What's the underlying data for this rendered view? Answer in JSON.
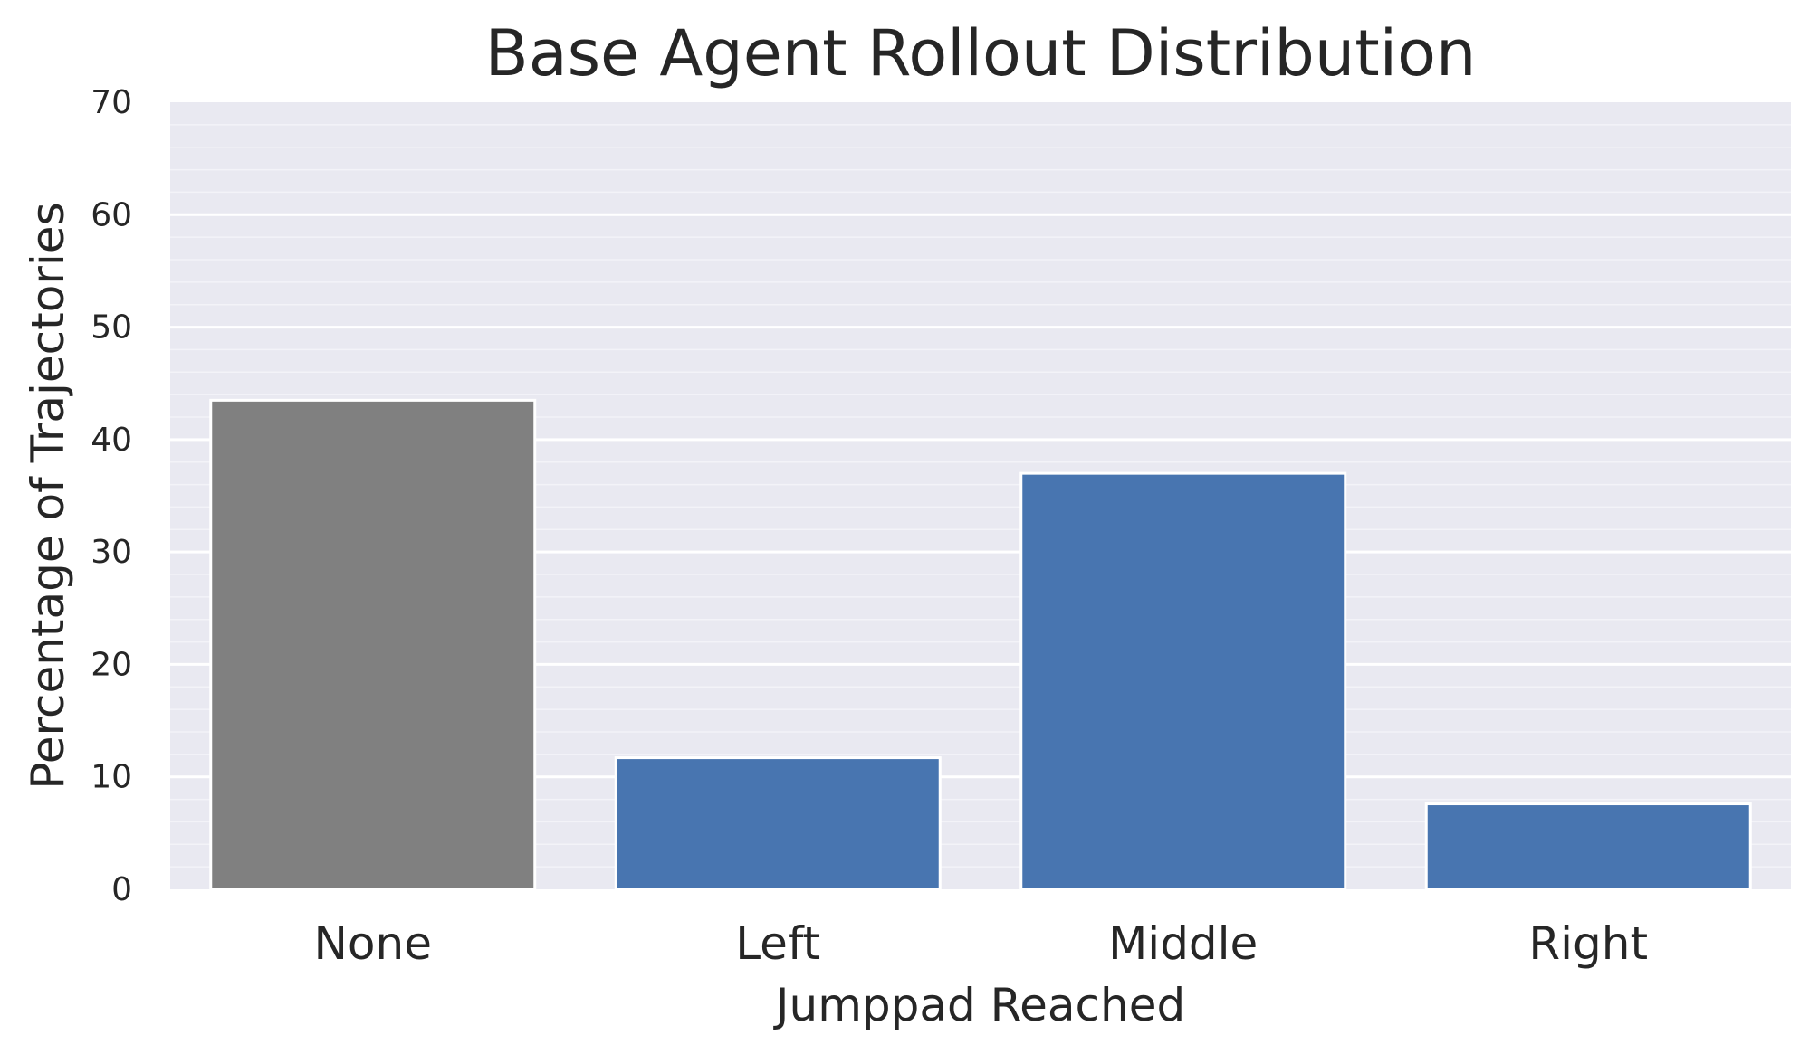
{
  "chart_data": {
    "type": "bar",
    "title": "Base Agent Rollout Distribution",
    "xlabel": "Jumppad Reached",
    "ylabel": "Percentage of Trajectories",
    "categories": [
      "None",
      "Left",
      "Middle",
      "Right"
    ],
    "values": [
      43.5,
      11.7,
      37.0,
      7.6
    ],
    "colors": [
      "#808080",
      "#4875b0",
      "#4875b0",
      "#4875b0"
    ],
    "ylim": [
      0,
      70
    ],
    "yticks": [
      "0",
      "10",
      "20",
      "30",
      "40",
      "50",
      "60",
      "70"
    ],
    "grid": true,
    "minor_grid": true,
    "background": "#e9e9f1"
  }
}
